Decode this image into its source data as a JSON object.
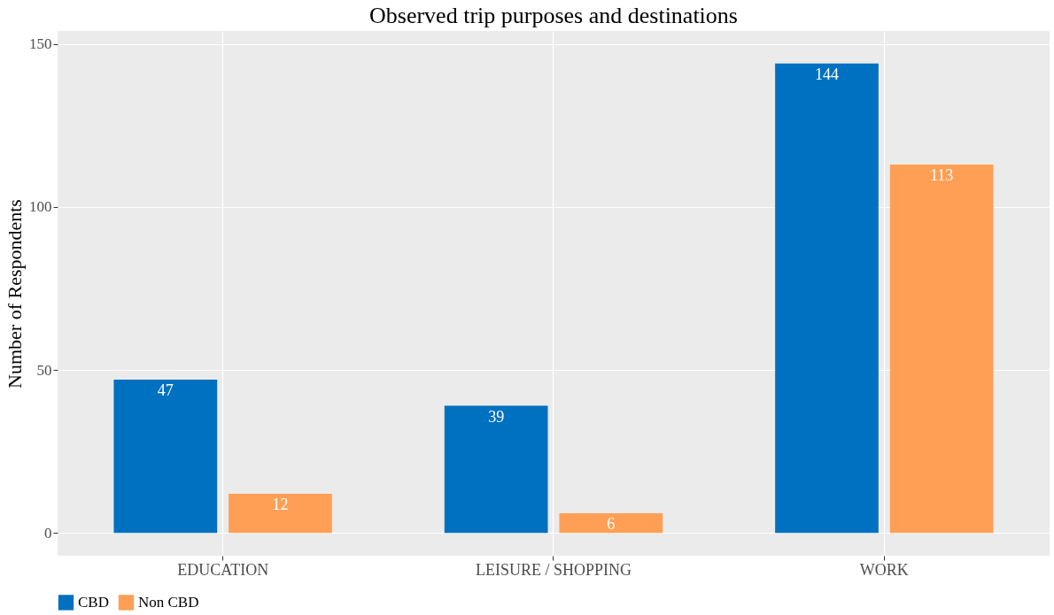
{
  "chart_data": {
    "type": "bar",
    "title": "Observed trip purposes and destinations",
    "ylabel": "Number of Respondents",
    "categories": [
      "EDUCATION",
      "LEISURE / SHOPPING",
      "WORK"
    ],
    "series": [
      {
        "name": "CBD",
        "color": "#0070c0",
        "values": [
          47,
          39,
          144
        ]
      },
      {
        "name": "Non CBD",
        "color": "#ff9f55",
        "values": [
          12,
          6,
          113
        ]
      }
    ],
    "ylim": [
      -7,
      154
    ],
    "yticks": [
      0,
      50,
      100,
      150
    ],
    "grid": true,
    "legend": "bottom",
    "data_labels": true
  }
}
